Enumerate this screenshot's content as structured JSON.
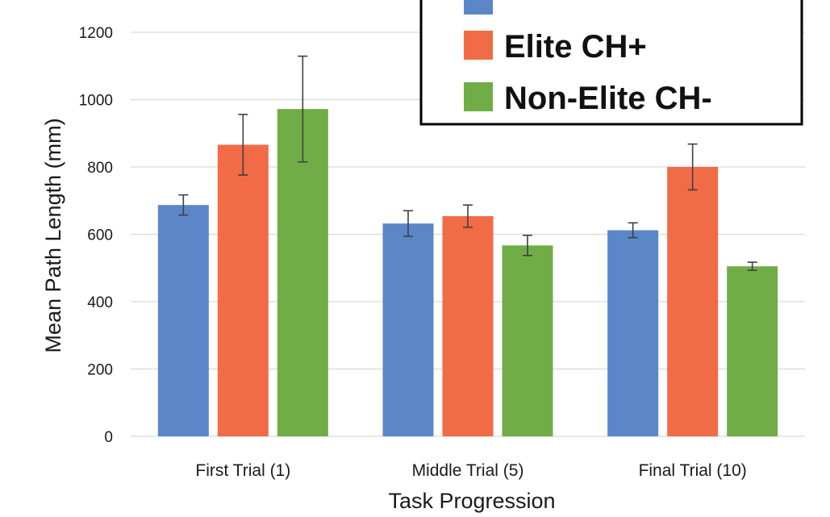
{
  "chart_data": {
    "type": "bar",
    "title": "",
    "xlabel": "Task Progression",
    "ylabel": "Mean Path Length (mm)",
    "ylim": [
      0,
      1200
    ],
    "yticks": [
      0,
      200,
      400,
      600,
      800,
      1000,
      1200
    ],
    "grid": true,
    "legend_position": "top-right",
    "categories": [
      "First Trial (1)",
      "Middle Trial (5)",
      "Final Trial (10)"
    ],
    "series": [
      {
        "name": "",
        "color": "#5b87c9",
        "values": [
          687,
          632,
          612
        ],
        "errors": [
          30,
          38,
          22
        ]
      },
      {
        "name": "Elite CH+",
        "color": "#f26b47",
        "values": [
          866,
          654,
          800
        ],
        "errors": [
          90,
          33,
          68
        ]
      },
      {
        "name": "Non-Elite CH-",
        "color": "#70ad47",
        "values": [
          972,
          567,
          505
        ],
        "errors": [
          157,
          30,
          12
        ]
      }
    ]
  }
}
